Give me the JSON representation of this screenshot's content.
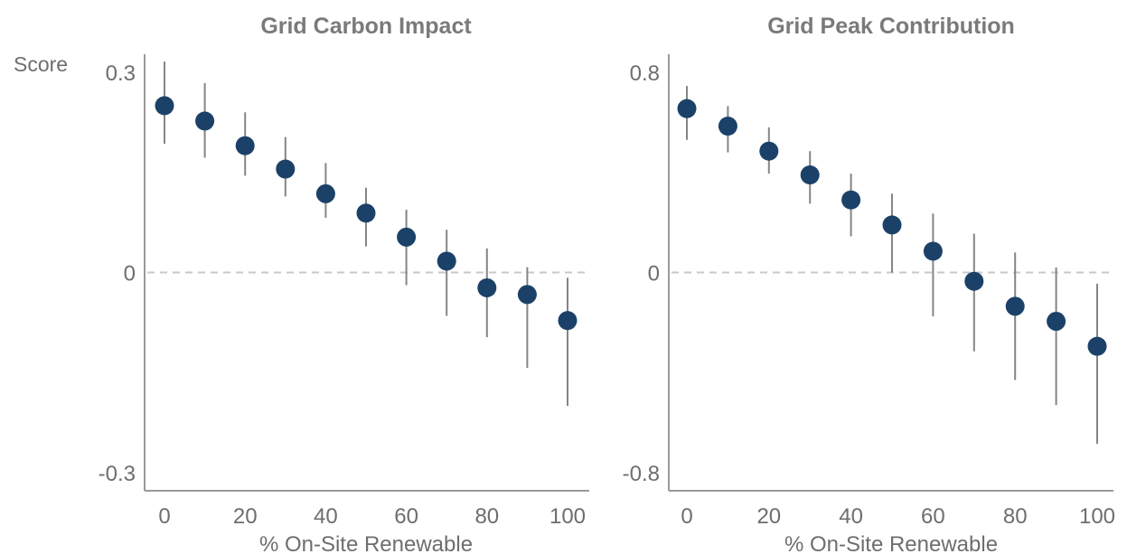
{
  "chart_data": [
    {
      "type": "scatter",
      "title": "Grid Carbon Impact",
      "xlabel": "% On-Site Renewable",
      "ylabel": "Score",
      "x": [
        0,
        10,
        20,
        30,
        40,
        50,
        60,
        70,
        80,
        90,
        100
      ],
      "y": [
        0.25,
        0.227,
        0.19,
        0.155,
        0.118,
        0.089,
        0.053,
        0.017,
        -0.023,
        -0.033,
        -0.072
      ],
      "error_low": [
        0.193,
        0.172,
        0.145,
        0.114,
        0.082,
        0.039,
        -0.019,
        -0.065,
        -0.097,
        -0.143,
        -0.2
      ],
      "error_high": [
        0.316,
        0.284,
        0.24,
        0.203,
        0.164,
        0.127,
        0.094,
        0.064,
        0.036,
        0.008,
        -0.008
      ],
      "xticks": [
        "0",
        "20",
        "40",
        "60",
        "80",
        "100"
      ],
      "yticks": [
        "0.3",
        "0",
        "-0.3"
      ],
      "ylim": [
        -0.33,
        0.33
      ],
      "xlim": [
        -4,
        104
      ],
      "reference_line": 0,
      "grid": false,
      "point_color": "#1b4168",
      "errorbar_color": "#858585",
      "reference_line_color": "#c8c8c8"
    },
    {
      "type": "scatter",
      "title": "Grid Peak Contribution",
      "xlabel": "% On-Site Renewable",
      "x": [
        0,
        10,
        20,
        30,
        40,
        50,
        60,
        70,
        80,
        90,
        100
      ],
      "y": [
        0.655,
        0.585,
        0.485,
        0.39,
        0.29,
        0.19,
        0.085,
        -0.035,
        -0.135,
        -0.195,
        -0.295
      ],
      "error_low": [
        0.53,
        0.48,
        0.395,
        0.275,
        0.145,
        0.0,
        -0.175,
        -0.315,
        -0.43,
        -0.53,
        -0.685
      ],
      "error_high": [
        0.745,
        0.665,
        0.58,
        0.485,
        0.395,
        0.315,
        0.235,
        0.155,
        0.08,
        0.02,
        -0.045
      ],
      "xticks": [
        "0",
        "20",
        "40",
        "60",
        "80",
        "100"
      ],
      "yticks": [
        "0.8",
        "0",
        "-0.8"
      ],
      "ylim": [
        -0.88,
        0.88
      ],
      "xlim": [
        -4,
        104
      ],
      "reference_line": 0,
      "grid": false,
      "point_color": "#1b4168",
      "errorbar_color": "#858585",
      "reference_line_color": "#c8c8c8"
    }
  ]
}
